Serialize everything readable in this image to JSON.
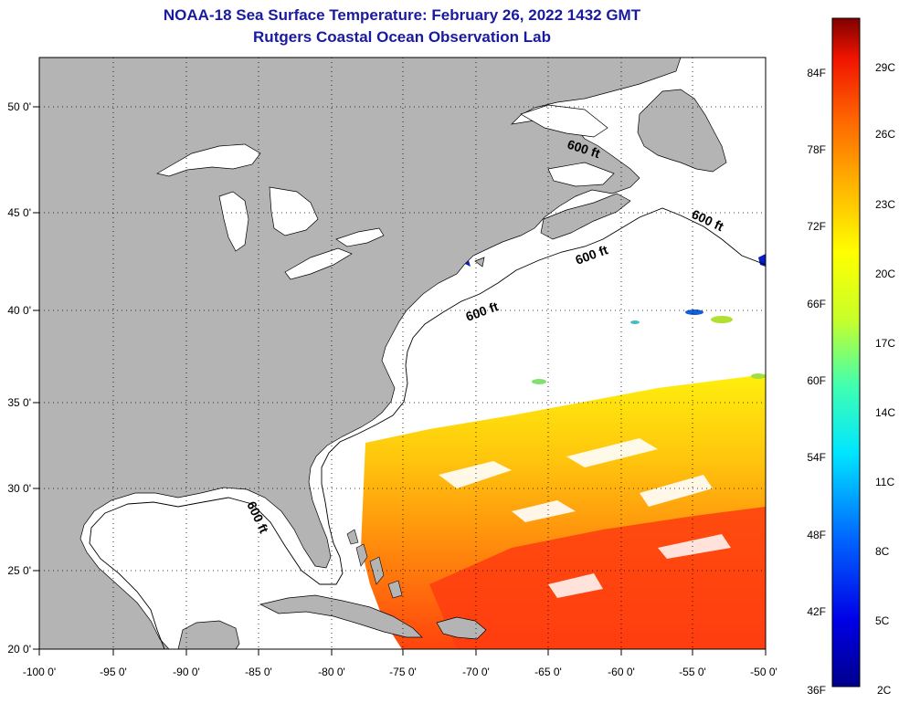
{
  "title": {
    "line1": "NOAA-18 Sea Surface Temperature:  February 26, 2022 1432 GMT",
    "line2": "Rutgers Coastal Ocean Observation Lab"
  },
  "map": {
    "lon_labels": [
      "-100 0'",
      "-95 0'",
      "-90 0'",
      "-85 0'",
      "-80 0'",
      "-75 0'",
      "-70 0'",
      "-65 0'",
      "-60 0'",
      "-55 0'",
      "-50 0'"
    ],
    "lat_labels": [
      "50 0'",
      "45 0'",
      "40 0'",
      "35 0'",
      "30 0'",
      "25 0'",
      "20 0'"
    ],
    "contour_labels": [
      "600 ft",
      "600 ft",
      "600 ft",
      "600 ft",
      "600 ft"
    ],
    "colors": {
      "land": "#b4b4b4",
      "ocean": "#ffffff",
      "cold": "#0a1ec8",
      "warm": "#ff3c00"
    }
  },
  "colorbar": {
    "f_labels": [
      "84F",
      "78F",
      "72F",
      "66F",
      "60F",
      "54F",
      "48F",
      "42F",
      "36F"
    ],
    "c_labels": [
      "29C",
      "26C",
      "23C",
      "20C",
      "17C",
      "14C",
      "11C",
      "8C",
      "5C",
      "2C"
    ]
  }
}
